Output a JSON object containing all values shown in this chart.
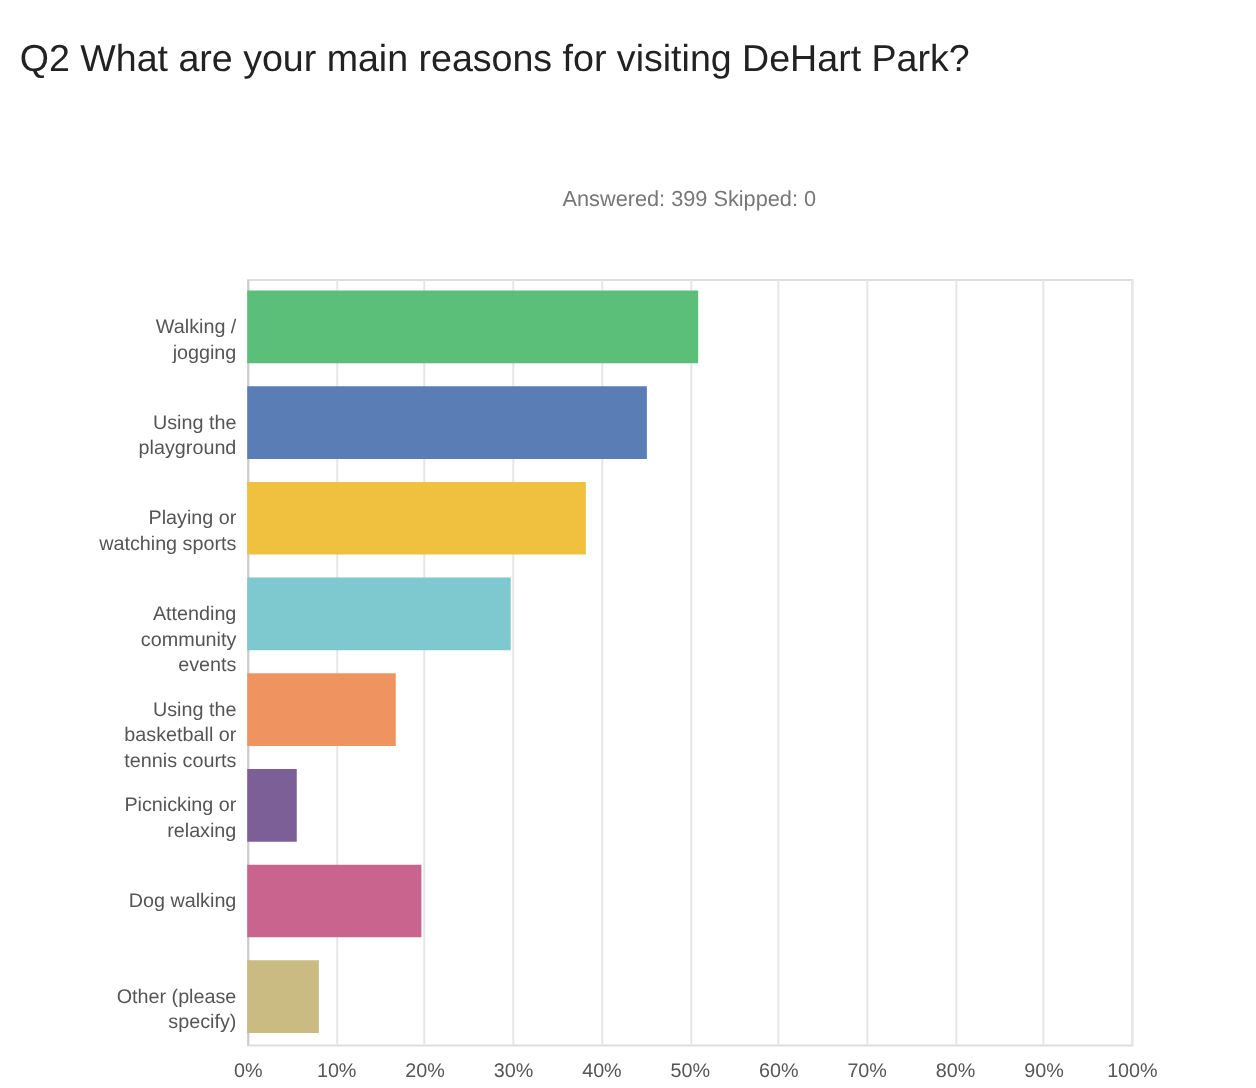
{
  "chart_data": {
    "type": "bar",
    "orientation": "horizontal",
    "title": "Q2 What are your main reasons for visiting DeHart Park?",
    "subtitle": "Answered: 399    Skipped: 0",
    "categories": [
      "Walking / jogging",
      "Using the playground",
      "Playing or watching sports",
      "Attending community events",
      "Using the basketball or tennis courts",
      "Picnicking or relaxing",
      "Dog walking",
      "Other (please specify)"
    ],
    "values": [
      51.0,
      45.2,
      38.3,
      29.8,
      16.8,
      5.6,
      19.7,
      8.1
    ],
    "colors": [
      "#5bbf7a",
      "#5a7db5",
      "#f0c13e",
      "#7ec8cf",
      "#ef9460",
      "#7b5f96",
      "#c9648f",
      "#c9bb81"
    ],
    "xlim": [
      0,
      100
    ],
    "xticks": [
      {
        "value": 0,
        "label": "0%"
      },
      {
        "value": 10,
        "label": "10%"
      },
      {
        "value": 20,
        "label": "20%"
      },
      {
        "value": 30,
        "label": "30%"
      },
      {
        "value": 40,
        "label": "40%"
      },
      {
        "value": 50,
        "label": "50%"
      },
      {
        "value": 60,
        "label": "60%"
      },
      {
        "value": 70,
        "label": "70%"
      },
      {
        "value": 80,
        "label": "80%"
      },
      {
        "value": 90,
        "label": "90%"
      },
      {
        "value": 100,
        "label": "100%"
      }
    ],
    "grid": "x"
  }
}
